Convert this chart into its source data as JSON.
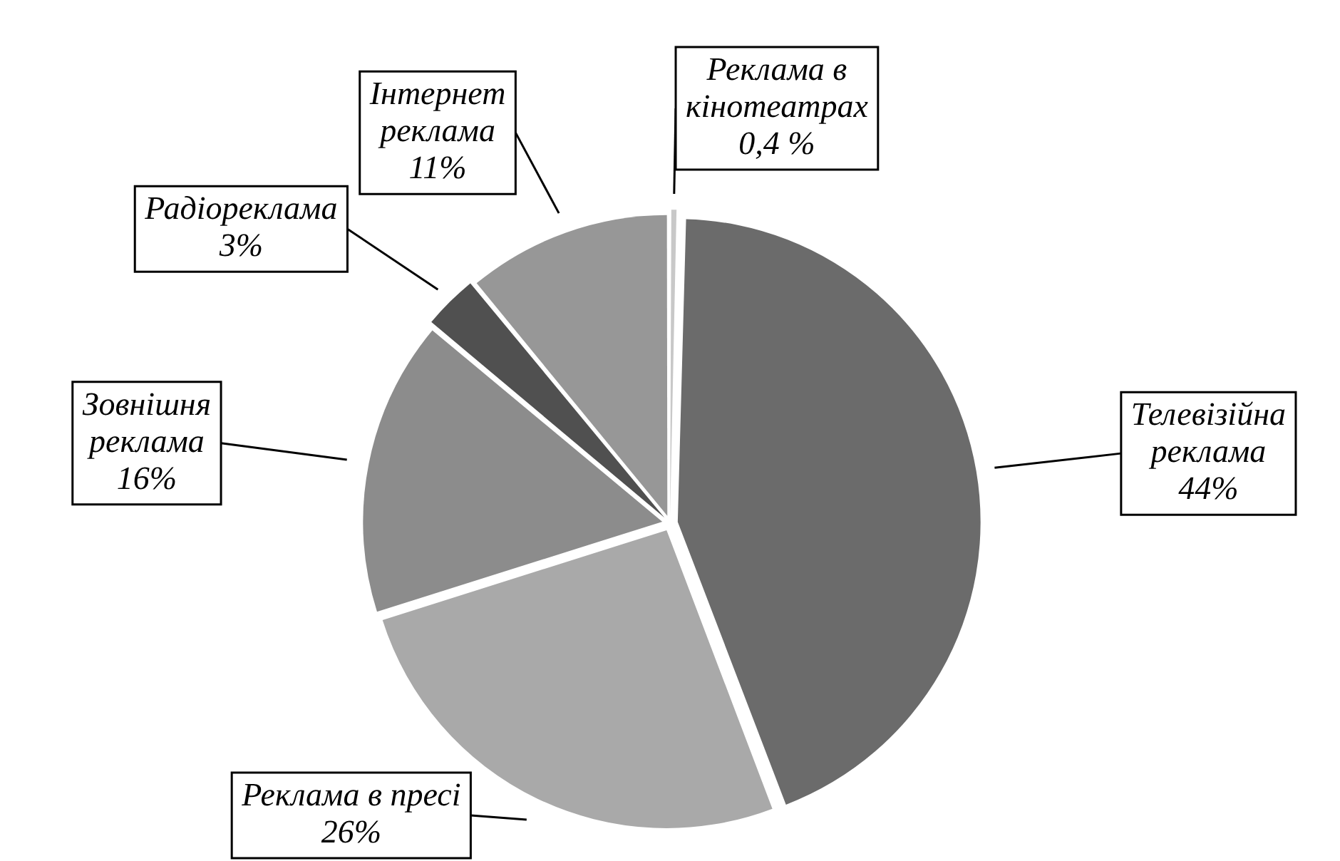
{
  "chart_data": {
    "type": "pie",
    "categories": [
      "Реклама в кінотеатрах",
      "Телевізійна реклама",
      "Реклама в пресі",
      "Зовнішня реклама",
      "Радіореклама",
      "Інтернет реклама"
    ],
    "values": [
      0.4,
      44,
      26,
      16,
      3,
      11
    ],
    "value_labels": [
      "0,4 %",
      "44%",
      "26%",
      "16%",
      "3%",
      "11%"
    ],
    "colors": [
      "#c8c8c8",
      "#6b6b6b",
      "#a9a9a9",
      "#8c8c8c",
      "#505050",
      "#979797"
    ],
    "legend": false
  }
}
